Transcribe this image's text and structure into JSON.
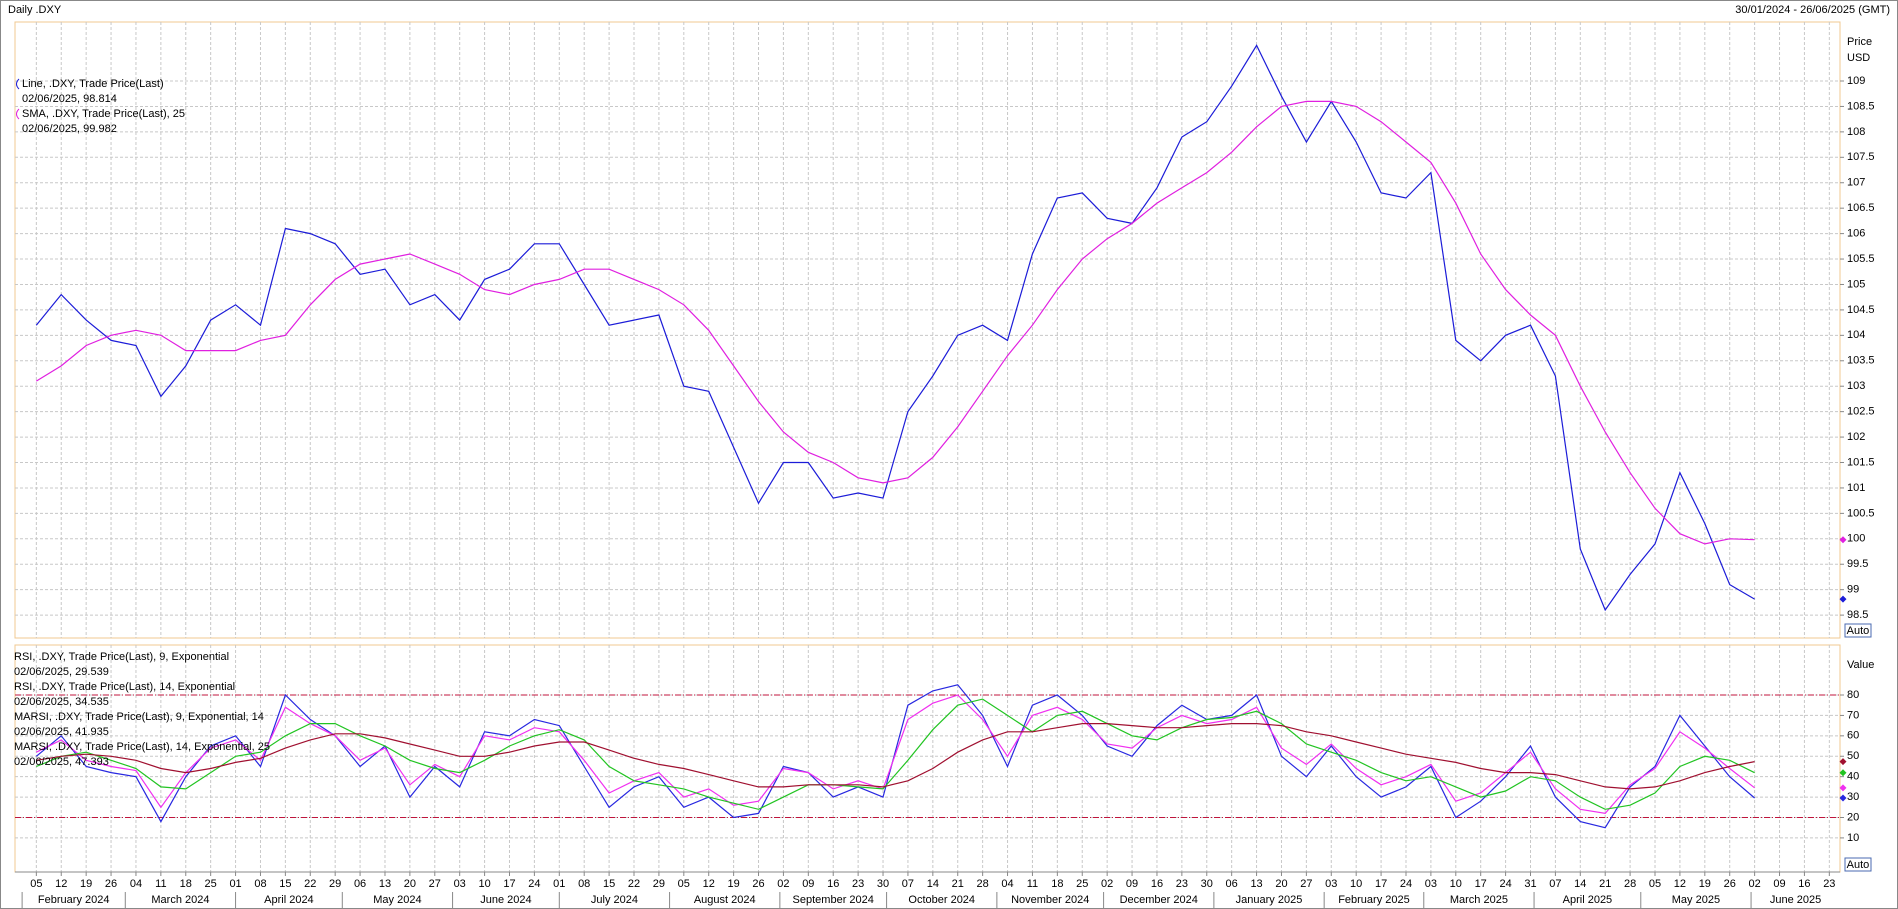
{
  "header": {
    "title": "Daily .DXY",
    "range": "30/01/2024 - 26/06/2025 (GMT)"
  },
  "chart_data": [
    {
      "type": "line",
      "y_label": "Price",
      "y_unit": "USD",
      "scale_button": "Auto",
      "grid": true,
      "xlim": [
        "2024-01-30",
        "2025-06-26"
      ],
      "ylim": [
        98.05,
        110.16
      ],
      "yticks": [
        98.5,
        99,
        99.5,
        100,
        100.5,
        101,
        101.5,
        102,
        102.5,
        103,
        103.5,
        104,
        104.5,
        105,
        105.5,
        106,
        106.5,
        107,
        107.5,
        108,
        108.5,
        109
      ],
      "x": [
        "2024-02-05",
        "2024-02-12",
        "2024-02-19",
        "2024-02-26",
        "2024-03-04",
        "2024-03-11",
        "2024-03-18",
        "2024-03-25",
        "2024-04-01",
        "2024-04-08",
        "2024-04-15",
        "2024-04-22",
        "2024-04-29",
        "2024-05-06",
        "2024-05-13",
        "2024-05-20",
        "2024-05-27",
        "2024-06-03",
        "2024-06-10",
        "2024-06-17",
        "2024-06-24",
        "2024-07-01",
        "2024-07-08",
        "2024-07-15",
        "2024-07-22",
        "2024-07-29",
        "2024-08-05",
        "2024-08-12",
        "2024-08-19",
        "2024-08-26",
        "2024-09-02",
        "2024-09-09",
        "2024-09-16",
        "2024-09-23",
        "2024-09-30",
        "2024-10-07",
        "2024-10-14",
        "2024-10-21",
        "2024-10-28",
        "2024-11-04",
        "2024-11-11",
        "2024-11-18",
        "2024-11-25",
        "2024-12-02",
        "2024-12-09",
        "2024-12-16",
        "2024-12-23",
        "2024-12-30",
        "2025-01-06",
        "2025-01-13",
        "2025-01-20",
        "2025-01-27",
        "2025-02-03",
        "2025-02-10",
        "2025-02-17",
        "2025-02-24",
        "2025-03-03",
        "2025-03-10",
        "2025-03-17",
        "2025-03-24",
        "2025-03-31",
        "2025-04-07",
        "2025-04-14",
        "2025-04-21",
        "2025-04-28",
        "2025-05-05",
        "2025-05-12",
        "2025-05-19",
        "2025-05-26",
        "2025-06-02"
      ],
      "series": [
        {
          "name": "Line, .DXY, Trade Price(Last)",
          "last_label": "02/06/2025, 98.814",
          "color": "#1c1cd8",
          "values": [
            104.2,
            104.8,
            104.3,
            103.9,
            103.8,
            102.8,
            103.4,
            104.3,
            104.6,
            104.2,
            106.1,
            106.0,
            105.8,
            105.2,
            105.3,
            104.6,
            104.8,
            104.3,
            105.1,
            105.3,
            105.8,
            105.8,
            105.0,
            104.2,
            104.3,
            104.4,
            103.0,
            102.9,
            101.8,
            100.7,
            101.5,
            101.5,
            100.8,
            100.9,
            100.8,
            102.5,
            103.2,
            104.0,
            104.2,
            103.9,
            105.6,
            106.7,
            106.8,
            106.3,
            106.2,
            106.9,
            107.9,
            108.2,
            108.9,
            109.7,
            108.7,
            107.8,
            108.6,
            107.8,
            106.8,
            106.7,
            107.2,
            103.9,
            103.5,
            104.0,
            104.2,
            103.2,
            99.8,
            98.6,
            99.3,
            99.9,
            101.3,
            100.3,
            99.1,
            98.814
          ]
        },
        {
          "name": "SMA, .DXY, Trade Price(Last),  25",
          "last_label": "02/06/2025, 99.982",
          "color": "#e020e0",
          "values": [
            103.1,
            103.4,
            103.8,
            104.0,
            104.1,
            104.0,
            103.7,
            103.7,
            103.7,
            103.9,
            104.0,
            104.6,
            105.1,
            105.4,
            105.5,
            105.6,
            105.4,
            105.2,
            104.9,
            104.8,
            105.0,
            105.1,
            105.3,
            105.3,
            105.1,
            104.9,
            104.6,
            104.1,
            103.4,
            102.7,
            102.1,
            101.7,
            101.5,
            101.2,
            101.1,
            101.2,
            101.6,
            102.2,
            102.9,
            103.6,
            104.2,
            104.9,
            105.5,
            105.9,
            106.2,
            106.6,
            106.9,
            107.2,
            107.6,
            108.1,
            108.5,
            108.6,
            108.6,
            108.5,
            108.2,
            107.8,
            107.4,
            106.6,
            105.6,
            104.9,
            104.4,
            104.0,
            103.0,
            102.1,
            101.3,
            100.6,
            100.1,
            99.9,
            100.0,
            99.982
          ]
        }
      ]
    },
    {
      "type": "line",
      "y_label": "Value",
      "scale_button": "Auto",
      "grid": true,
      "xlim": [
        "2024-01-30",
        "2025-06-26"
      ],
      "ylim": [
        -6.7,
        104.5
      ],
      "yticks": [
        10,
        20,
        30,
        40,
        50,
        60,
        70,
        80
      ],
      "levels": [
        20,
        80
      ],
      "level_color": "#c0143c",
      "x": [
        "2024-02-05",
        "2024-02-12",
        "2024-02-19",
        "2024-02-26",
        "2024-03-04",
        "2024-03-11",
        "2024-03-18",
        "2024-03-25",
        "2024-04-01",
        "2024-04-08",
        "2024-04-15",
        "2024-04-22",
        "2024-04-29",
        "2024-05-06",
        "2024-05-13",
        "2024-05-20",
        "2024-05-27",
        "2024-06-03",
        "2024-06-10",
        "2024-06-17",
        "2024-06-24",
        "2024-07-01",
        "2024-07-08",
        "2024-07-15",
        "2024-07-22",
        "2024-07-29",
        "2024-08-05",
        "2024-08-12",
        "2024-08-19",
        "2024-08-26",
        "2024-09-02",
        "2024-09-09",
        "2024-09-16",
        "2024-09-23",
        "2024-09-30",
        "2024-10-07",
        "2024-10-14",
        "2024-10-21",
        "2024-10-28",
        "2024-11-04",
        "2024-11-11",
        "2024-11-18",
        "2024-11-25",
        "2024-12-02",
        "2024-12-09",
        "2024-12-16",
        "2024-12-23",
        "2024-12-30",
        "2025-01-06",
        "2025-01-13",
        "2025-01-20",
        "2025-01-27",
        "2025-02-03",
        "2025-02-10",
        "2025-02-17",
        "2025-02-24",
        "2025-03-03",
        "2025-03-10",
        "2025-03-17",
        "2025-03-24",
        "2025-03-31",
        "2025-04-07",
        "2025-04-14",
        "2025-04-21",
        "2025-04-28",
        "2025-05-05",
        "2025-05-12",
        "2025-05-19",
        "2025-05-26",
        "2025-06-02"
      ],
      "series": [
        {
          "name": "RSI, .DXY, Trade Price(Last),  9, Exponential",
          "last_label": "02/06/2025, 29.539",
          "color": "#2828e0",
          "values": [
            50,
            60,
            45,
            42,
            40,
            18,
            40,
            55,
            60,
            45,
            80,
            68,
            60,
            45,
            55,
            30,
            45,
            35,
            62,
            60,
            68,
            65,
            45,
            25,
            35,
            40,
            25,
            30,
            20,
            22,
            45,
            42,
            30,
            35,
            30,
            75,
            82,
            85,
            70,
            45,
            75,
            80,
            70,
            55,
            50,
            65,
            75,
            68,
            70,
            80,
            50,
            40,
            55,
            40,
            30,
            35,
            45,
            20,
            28,
            40,
            55,
            30,
            18,
            15,
            35,
            45,
            70,
            55,
            40,
            29.539
          ]
        },
        {
          "name": "RSI, .DXY, Trade Price(Last),  14, Exponential",
          "last_label": "02/06/2025, 34.535",
          "color": "#f030f0",
          "values": [
            52,
            58,
            48,
            45,
            43,
            25,
            42,
            54,
            58,
            48,
            74,
            66,
            60,
            48,
            54,
            36,
            46,
            40,
            60,
            58,
            64,
            62,
            48,
            32,
            38,
            42,
            30,
            34,
            26,
            28,
            44,
            42,
            34,
            38,
            34,
            68,
            76,
            80,
            68,
            50,
            70,
            74,
            68,
            56,
            54,
            64,
            70,
            66,
            68,
            74,
            54,
            46,
            56,
            44,
            36,
            40,
            46,
            28,
            32,
            42,
            52,
            34,
            24,
            22,
            36,
            44,
            62,
            54,
            44,
            34.535
          ]
        },
        {
          "name": "MARSI, .DXY, Trade Price(Last),  9, Exponential, 14",
          "last_label": "02/06/2025, 41.935",
          "color": "#22c422",
          "values": [
            45,
            50,
            52,
            48,
            44,
            35,
            34,
            42,
            50,
            52,
            60,
            66,
            66,
            60,
            55,
            48,
            44,
            42,
            48,
            55,
            60,
            63,
            58,
            45,
            38,
            36,
            34,
            30,
            27,
            24,
            30,
            36,
            36,
            35,
            34,
            48,
            63,
            75,
            78,
            70,
            62,
            70,
            72,
            66,
            60,
            58,
            64,
            68,
            69,
            72,
            66,
            56,
            52,
            48,
            42,
            38,
            40,
            35,
            30,
            33,
            40,
            38,
            30,
            24,
            26,
            32,
            45,
            50,
            48,
            41.935
          ]
        },
        {
          "name": "MARSI, .DXY, Trade Price(Last),  14, Exponential, 25",
          "last_label": "02/06/2025, 47.393",
          "color": "#a01030",
          "values": [
            48,
            50,
            51,
            50,
            48,
            44,
            42,
            44,
            47,
            49,
            54,
            58,
            61,
            61,
            59,
            56,
            53,
            50,
            50,
            52,
            55,
            57,
            57,
            53,
            49,
            46,
            44,
            41,
            38,
            35,
            35,
            36,
            36,
            36,
            35,
            38,
            44,
            52,
            58,
            62,
            62,
            64,
            66,
            66,
            65,
            64,
            64,
            65,
            66,
            66,
            65,
            62,
            60,
            57,
            54,
            51,
            49,
            47,
            44,
            42,
            42,
            41,
            38,
            35,
            34,
            35,
            38,
            42,
            45,
            47.393
          ]
        }
      ],
      "xticks": [
        {
          "value": "2024-02-05",
          "label": "05"
        },
        {
          "value": "2024-02-12",
          "label": "12"
        },
        {
          "value": "2024-02-19",
          "label": "19"
        },
        {
          "value": "2024-02-26",
          "label": "26"
        },
        {
          "value": "2024-03-04",
          "label": "04"
        },
        {
          "value": "2024-03-11",
          "label": "11"
        },
        {
          "value": "2024-03-18",
          "label": "18"
        },
        {
          "value": "2024-03-25",
          "label": "25"
        },
        {
          "value": "2024-04-01",
          "label": "01"
        },
        {
          "value": "2024-04-08",
          "label": "08"
        },
        {
          "value": "2024-04-15",
          "label": "15"
        },
        {
          "value": "2024-04-22",
          "label": "22"
        },
        {
          "value": "2024-04-29",
          "label": "29"
        },
        {
          "value": "2024-05-06",
          "label": "06"
        },
        {
          "value": "2024-05-13",
          "label": "13"
        },
        {
          "value": "2024-05-20",
          "label": "20"
        },
        {
          "value": "2024-05-27",
          "label": "27"
        },
        {
          "value": "2024-06-03",
          "label": "03"
        },
        {
          "value": "2024-06-10",
          "label": "10"
        },
        {
          "value": "2024-06-17",
          "label": "17"
        },
        {
          "value": "2024-06-24",
          "label": "24"
        },
        {
          "value": "2024-07-01",
          "label": "01"
        },
        {
          "value": "2024-07-08",
          "label": "08"
        },
        {
          "value": "2024-07-15",
          "label": "15"
        },
        {
          "value": "2024-07-22",
          "label": "22"
        },
        {
          "value": "2024-07-29",
          "label": "29"
        },
        {
          "value": "2024-08-05",
          "label": "05"
        },
        {
          "value": "2024-08-12",
          "label": "12"
        },
        {
          "value": "2024-08-19",
          "label": "19"
        },
        {
          "value": "2024-08-26",
          "label": "26"
        },
        {
          "value": "2024-09-02",
          "label": "02"
        },
        {
          "value": "2024-09-09",
          "label": "09"
        },
        {
          "value": "2024-09-16",
          "label": "16"
        },
        {
          "value": "2024-09-23",
          "label": "23"
        },
        {
          "value": "2024-09-30",
          "label": "30"
        },
        {
          "value": "2024-10-07",
          "label": "07"
        },
        {
          "value": "2024-10-14",
          "label": "14"
        },
        {
          "value": "2024-10-21",
          "label": "21"
        },
        {
          "value": "2024-10-28",
          "label": "28"
        },
        {
          "value": "2024-11-04",
          "label": "04"
        },
        {
          "value": "2024-11-11",
          "label": "11"
        },
        {
          "value": "2024-11-18",
          "label": "18"
        },
        {
          "value": "2024-11-25",
          "label": "25"
        },
        {
          "value": "2024-12-02",
          "label": "02"
        },
        {
          "value": "2024-12-09",
          "label": "09"
        },
        {
          "value": "2024-12-16",
          "label": "16"
        },
        {
          "value": "2024-12-23",
          "label": "23"
        },
        {
          "value": "2024-12-30",
          "label": "30"
        },
        {
          "value": "2025-01-06",
          "label": "06"
        },
        {
          "value": "2025-01-13",
          "label": "13"
        },
        {
          "value": "2025-01-20",
          "label": "20"
        },
        {
          "value": "2025-01-27",
          "label": "27"
        },
        {
          "value": "2025-02-03",
          "label": "03"
        },
        {
          "value": "2025-02-10",
          "label": "10"
        },
        {
          "value": "2025-02-17",
          "label": "17"
        },
        {
          "value": "2025-02-24",
          "label": "24"
        },
        {
          "value": "2025-03-03",
          "label": "03"
        },
        {
          "value": "2025-03-10",
          "label": "10"
        },
        {
          "value": "2025-03-17",
          "label": "17"
        },
        {
          "value": "2025-03-24",
          "label": "24"
        },
        {
          "value": "2025-03-31",
          "label": "31"
        },
        {
          "value": "2025-04-07",
          "label": "07"
        },
        {
          "value": "2025-04-14",
          "label": "14"
        },
        {
          "value": "2025-04-21",
          "label": "21"
        },
        {
          "value": "2025-04-28",
          "label": "28"
        },
        {
          "value": "2025-05-05",
          "label": "05"
        },
        {
          "value": "2025-05-12",
          "label": "12"
        },
        {
          "value": "2025-05-19",
          "label": "19"
        },
        {
          "value": "2025-05-26",
          "label": "26"
        },
        {
          "value": "2025-06-02",
          "label": "02"
        },
        {
          "value": "2025-06-09",
          "label": "09"
        },
        {
          "value": "2025-06-16",
          "label": "16"
        },
        {
          "value": "2025-06-23",
          "label": "23"
        }
      ],
      "months": [
        {
          "value": "2024-02",
          "label": "February 2024"
        },
        {
          "value": "2024-03",
          "label": "March 2024"
        },
        {
          "value": "2024-04",
          "label": "April 2024"
        },
        {
          "value": "2024-05",
          "label": "May 2024"
        },
        {
          "value": "2024-06",
          "label": "June 2024"
        },
        {
          "value": "2024-07",
          "label": "July 2024"
        },
        {
          "value": "2024-08",
          "label": "August 2024"
        },
        {
          "value": "2024-09",
          "label": "September 2024"
        },
        {
          "value": "2024-10",
          "label": "October 2024"
        },
        {
          "value": "2024-11",
          "label": "November 2024"
        },
        {
          "value": "2024-12",
          "label": "December 2024"
        },
        {
          "value": "2025-01",
          "label": "January 2025"
        },
        {
          "value": "2025-02",
          "label": "February 2025"
        },
        {
          "value": "2025-03",
          "label": "March 2025"
        },
        {
          "value": "2025-04",
          "label": "April 2025"
        },
        {
          "value": "2025-05",
          "label": "May 2025"
        },
        {
          "value": "2025-06",
          "label": "June 2025"
        }
      ]
    }
  ]
}
